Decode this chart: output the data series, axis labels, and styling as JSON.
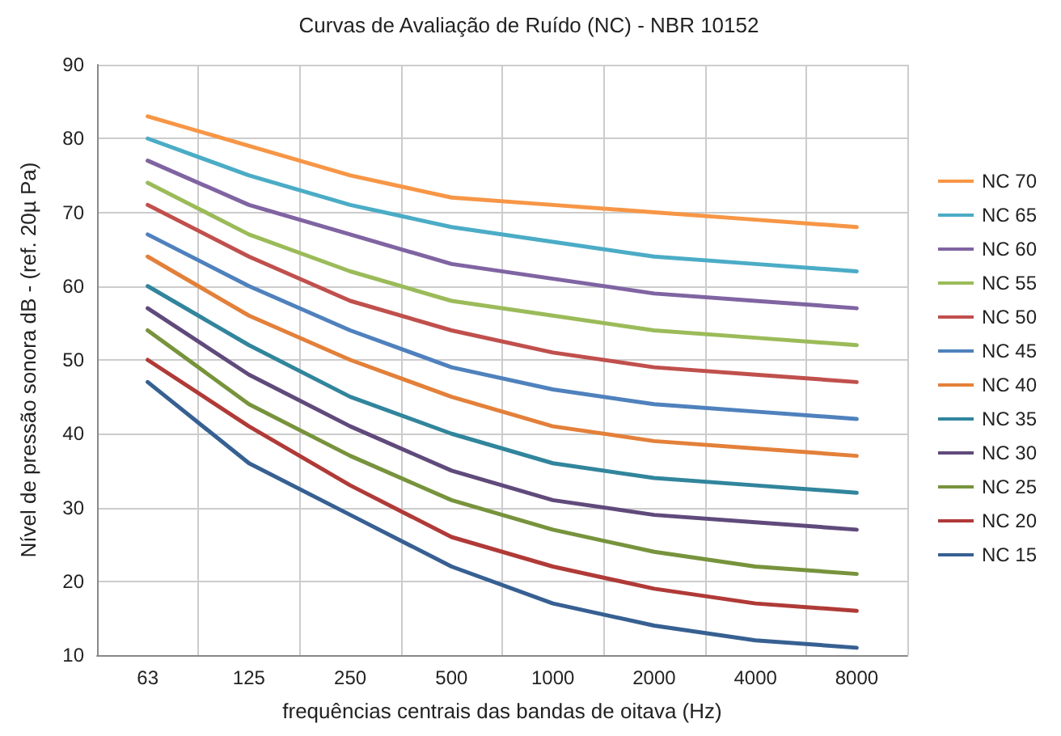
{
  "chart_data": {
    "type": "line",
    "title": "Curvas de Avaliação de Ruído (NC) - NBR 10152",
    "xlabel": "frequências centrais das bandas de oitava (Hz)",
    "ylabel": "Nível de pressão sonora dB - (ref. 20µ Pa)",
    "categories": [
      "63",
      "125",
      "250",
      "500",
      "1000",
      "2000",
      "4000",
      "8000"
    ],
    "ylim": [
      10,
      90
    ],
    "yticks": [
      10,
      20,
      30,
      40,
      50,
      60,
      70,
      80,
      90
    ],
    "grid": true,
    "legend": "right",
    "marker": "none",
    "line_style": "solid",
    "series": [
      {
        "name": "NC 70",
        "color": "#f79646",
        "values": [
          83,
          79,
          75,
          72,
          71,
          70,
          69,
          68
        ]
      },
      {
        "name": "NC 65",
        "color": "#4bacc6",
        "values": [
          80,
          75,
          71,
          68,
          66,
          64,
          63,
          62
        ]
      },
      {
        "name": "NC 60",
        "color": "#8064a2",
        "values": [
          77,
          71,
          67,
          63,
          61,
          59,
          58,
          57
        ]
      },
      {
        "name": "NC 55",
        "color": "#9bbb59",
        "values": [
          74,
          67,
          62,
          58,
          56,
          54,
          53,
          52
        ]
      },
      {
        "name": "NC 50",
        "color": "#c0504d",
        "values": [
          71,
          64,
          58,
          54,
          51,
          49,
          48,
          47
        ]
      },
      {
        "name": "NC 45",
        "color": "#4f81bd",
        "values": [
          67,
          60,
          54,
          49,
          46,
          44,
          43,
          42
        ]
      },
      {
        "name": "NC 40",
        "color": "#e3803a",
        "values": [
          64,
          56,
          50,
          45,
          41,
          39,
          38,
          37
        ]
      },
      {
        "name": "NC 35",
        "color": "#31859c",
        "values": [
          60,
          52,
          45,
          40,
          36,
          34,
          33,
          32
        ]
      },
      {
        "name": "NC 30",
        "color": "#604a7b",
        "values": [
          57,
          48,
          41,
          35,
          31,
          29,
          28,
          27
        ]
      },
      {
        "name": "NC 25",
        "color": "#77933c",
        "values": [
          54,
          44,
          37,
          31,
          27,
          24,
          22,
          21
        ]
      },
      {
        "name": "NC 20",
        "color": "#b03a37",
        "values": [
          50,
          41,
          33,
          26,
          22,
          19,
          17,
          16
        ]
      },
      {
        "name": "NC 15",
        "color": "#376092",
        "values": [
          47,
          36,
          29,
          22,
          17,
          14,
          12,
          11
        ]
      }
    ]
  }
}
